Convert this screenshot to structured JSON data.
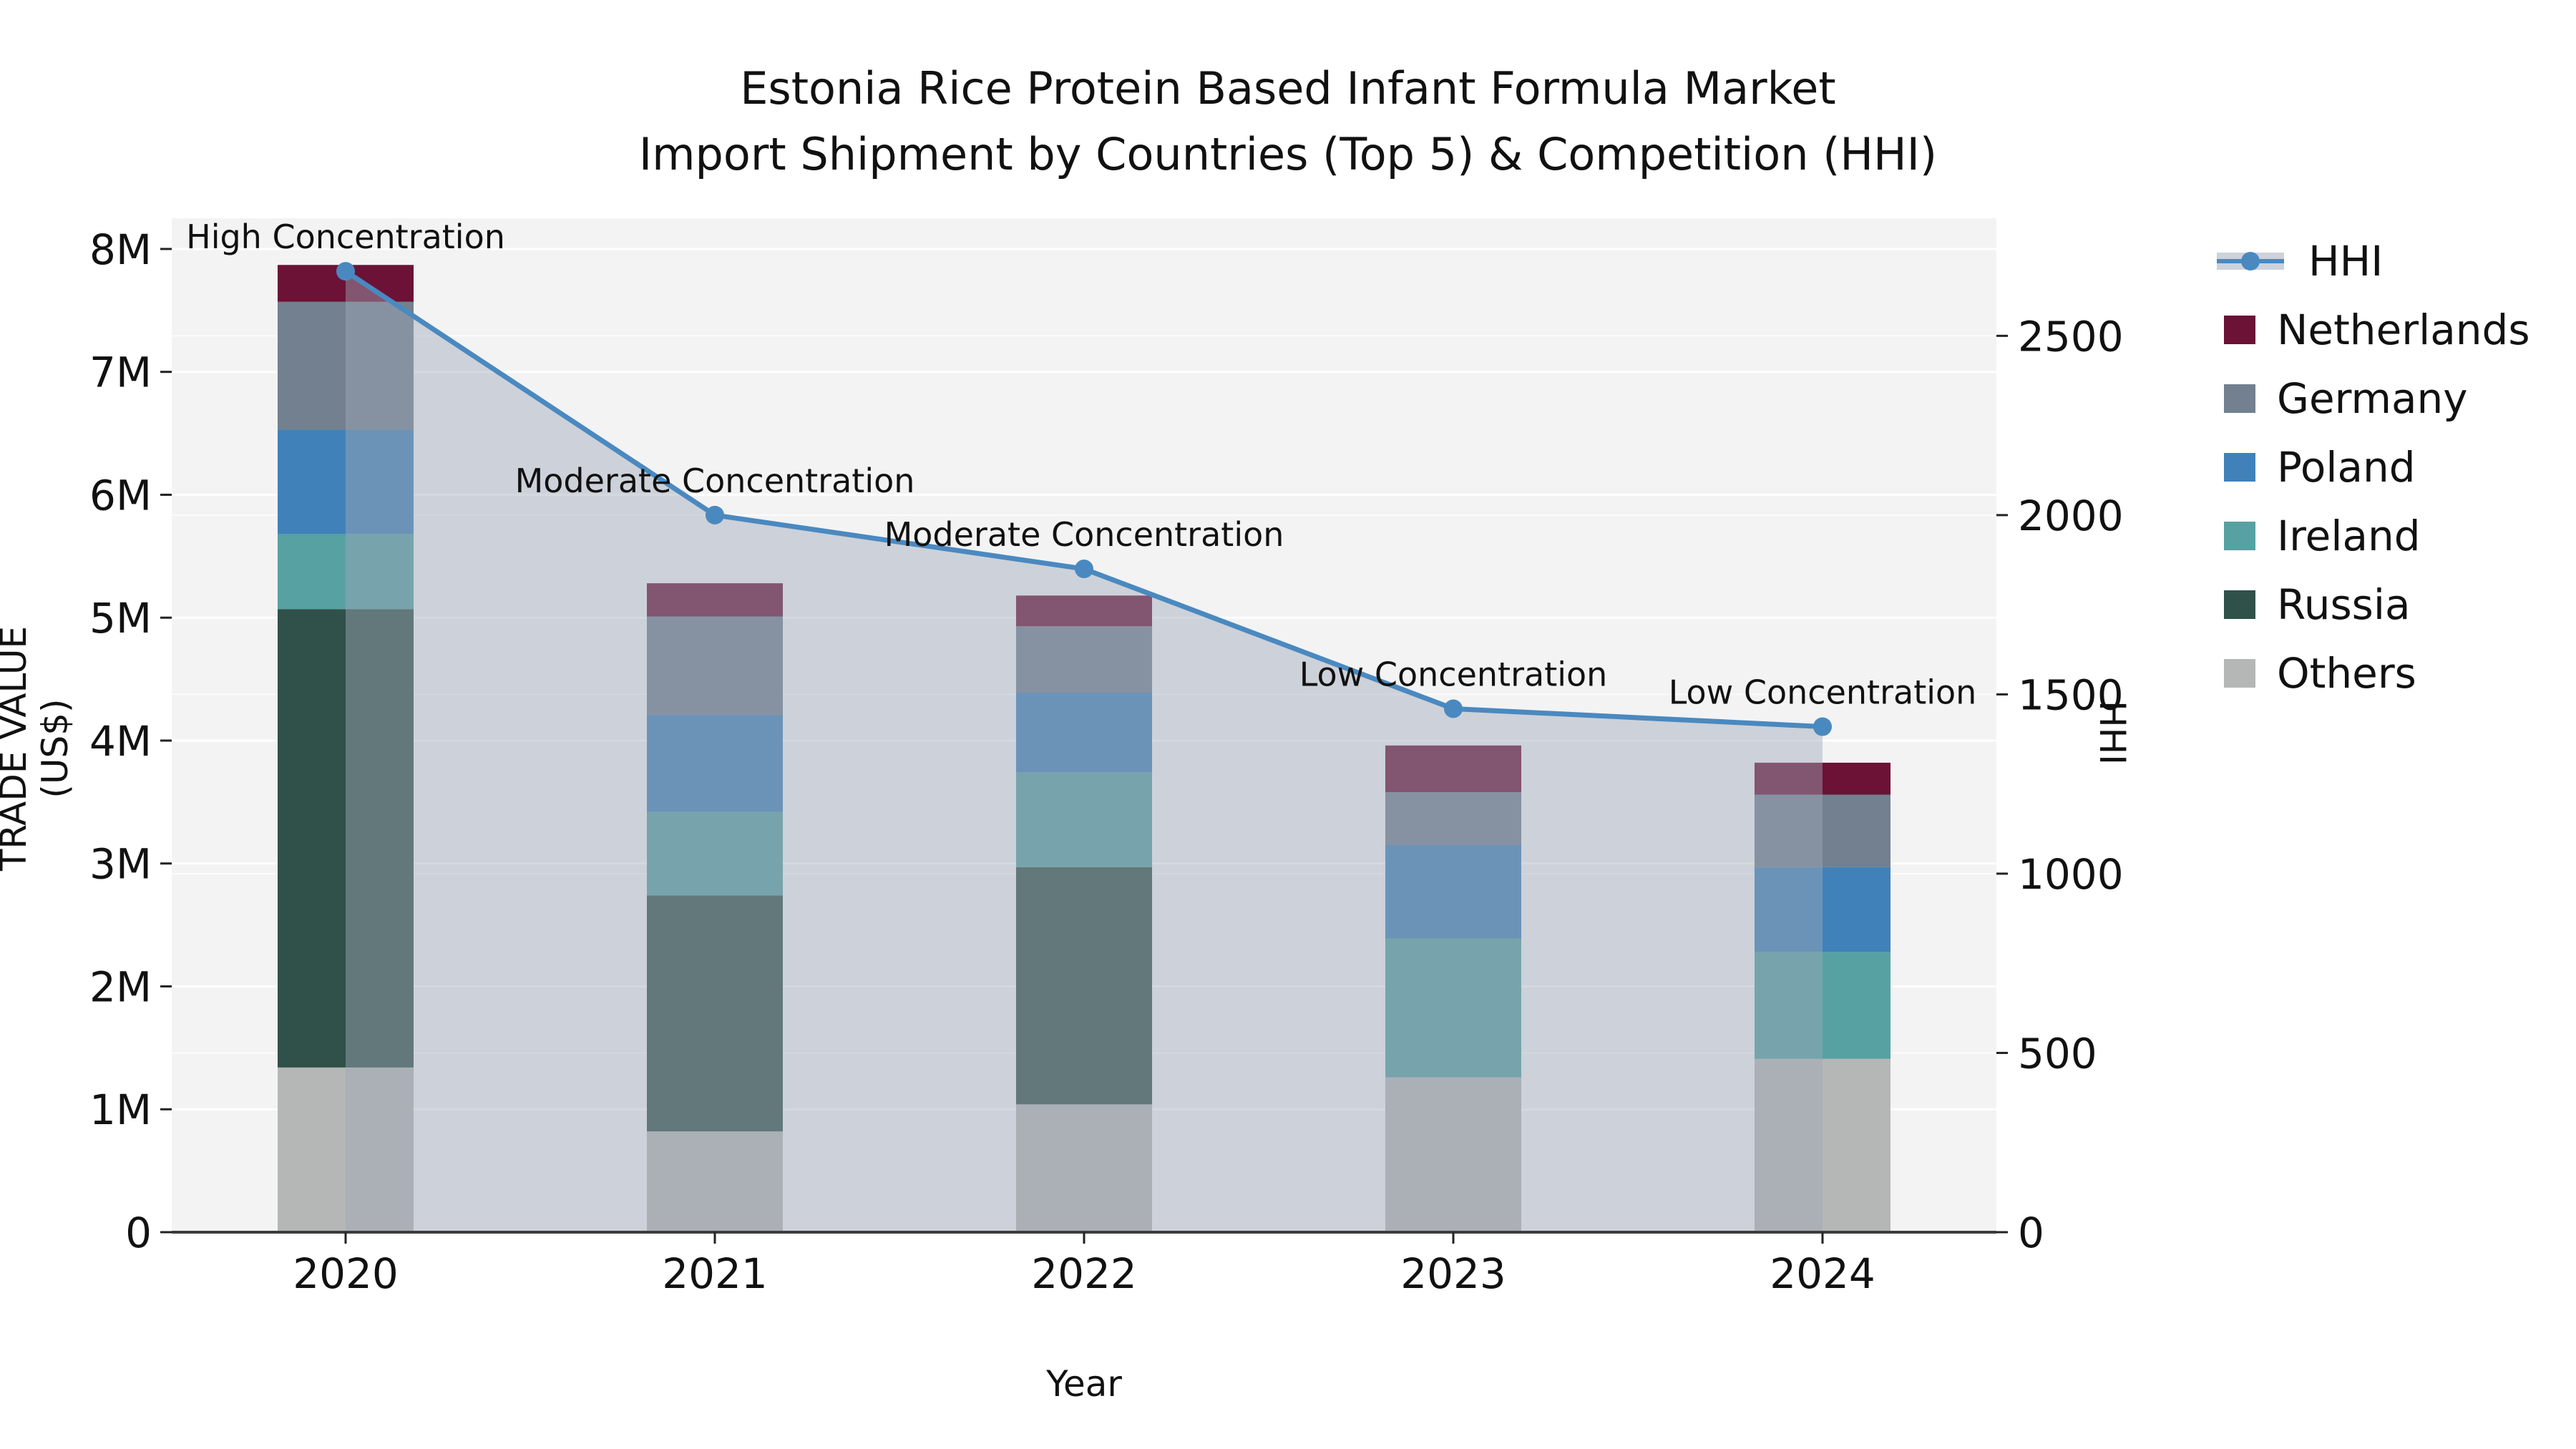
{
  "chart_data": {
    "type": "combo-stacked-bar-line",
    "title_lines": [
      "Estonia Rice Protein Based Infant Formula Market",
      "Import Shipment by Countries (Top 5) & Competition (HHI)"
    ],
    "xlabel": "Year",
    "ylabel_left": "TRADE VALUE (US$)",
    "ylabel_right": "HHI",
    "categories": [
      "2020",
      "2021",
      "2022",
      "2023",
      "2024"
    ],
    "bar_unit": "US$ trade value",
    "series": [
      {
        "name": "Others",
        "color": "#b5b7b6",
        "values": [
          1340000,
          820000,
          1040000,
          1260000,
          1410000
        ]
      },
      {
        "name": "Russia",
        "color": "#30504a",
        "values": [
          3730000,
          1920000,
          1930000,
          0,
          0
        ]
      },
      {
        "name": "Ireland",
        "color": "#57a1a2",
        "values": [
          610000,
          680000,
          770000,
          1130000,
          870000
        ]
      },
      {
        "name": "Poland",
        "color": "#4181b9",
        "values": [
          850000,
          790000,
          650000,
          760000,
          690000
        ]
      },
      {
        "name": "Germany",
        "color": "#72808f",
        "values": [
          1040000,
          800000,
          540000,
          430000,
          590000
        ]
      },
      {
        "name": "Netherlands",
        "color": "#6b1236",
        "values": [
          300000,
          270000,
          250000,
          380000,
          260000
        ]
      }
    ],
    "line_series": {
      "name": "HHI",
      "color": "#4a89c0",
      "area_fill": "rgba(159,168,184,0.45)",
      "values": [
        2680,
        2000,
        1850,
        1460,
        1410
      ]
    },
    "annotations": [
      "High Concentration",
      "Moderate Concentration",
      "Moderate Concentration",
      "Low Concentration",
      "Low Concentration"
    ],
    "left_axis": {
      "tick_labels": [
        "0",
        "1M",
        "2M",
        "3M",
        "4M",
        "5M",
        "6M",
        "7M",
        "8M"
      ],
      "tick_values": [
        0,
        1000000,
        2000000,
        3000000,
        4000000,
        5000000,
        6000000,
        7000000,
        8000000
      ],
      "max": 8250000
    },
    "right_axis": {
      "tick_labels": [
        "0",
        "500",
        "1000",
        "1500",
        "2000",
        "2500"
      ],
      "tick_values": [
        0,
        500,
        1000,
        1500,
        2000,
        2500
      ],
      "max": 2828
    },
    "legend_order": [
      "HHI",
      "Netherlands",
      "Germany",
      "Poland",
      "Ireland",
      "Russia",
      "Others"
    ],
    "styles": {
      "plot_bg": "#f3f3f4",
      "grid_left": "#ffffff",
      "grid_right": "rgba(255,255,255,0.75)",
      "spine": "#3c3c3c",
      "tick": "#222222",
      "text": "#111111"
    }
  }
}
